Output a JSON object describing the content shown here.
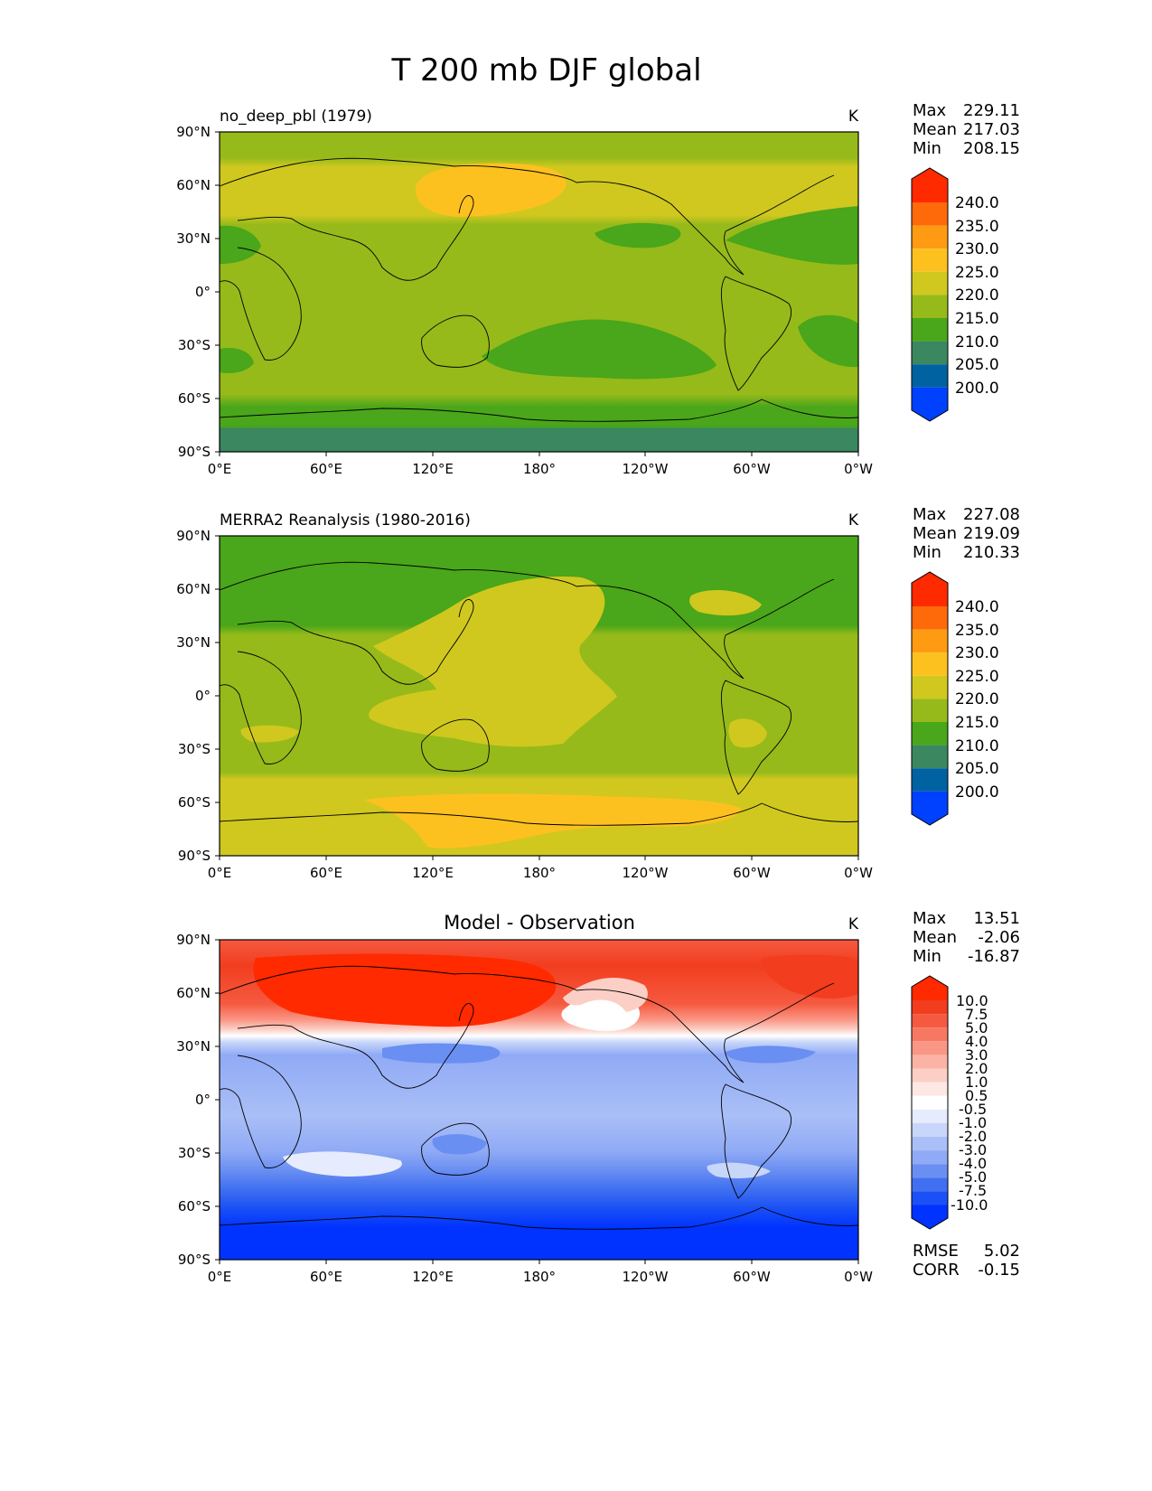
{
  "title": "T 200 mb DJF global",
  "colors": {
    "abs_levels": [
      "#0040ff",
      "#0062a0",
      "#3a8760",
      "#4aa61a",
      "#96ba1a",
      "#d0c81f",
      "#fdc11f",
      "#fe9b12",
      "#fe6a0a",
      "#ff2a00"
    ],
    "diff_levels": [
      "#0033ff",
      "#1a50f5",
      "#4070f0",
      "#6a8ff2",
      "#90aaf5",
      "#aabff7",
      "#c8d6fa",
      "#e6ecfd",
      "#ffffff",
      "#fde8e4",
      "#fccfc6",
      "#fbb3a6",
      "#fa9685",
      "#f77862",
      "#f55a40",
      "#f23d1f",
      "#ff2a00"
    ]
  },
  "axes_labels": {
    "y_ticks": [
      "90°N",
      "60°N",
      "30°N",
      "0°",
      "30°S",
      "60°S",
      "90°S"
    ],
    "x_ticks": [
      "0°E",
      "60°E",
      "120°E",
      "180°",
      "120°W",
      "60°W",
      "0°W"
    ]
  },
  "chart_data": [
    {
      "type": "heatmap",
      "panel": "model",
      "title_left": "no_deep_pbl (1979)",
      "units": "K",
      "stats": [
        {
          "label": "Max",
          "value": "229.11"
        },
        {
          "label": "Mean",
          "value": "217.03"
        },
        {
          "label": "Min",
          "value": "208.15"
        }
      ],
      "colorbar": {
        "levels": [
          200.0,
          205.0,
          210.0,
          215.0,
          220.0,
          225.0,
          230.0,
          235.0,
          240.0
        ],
        "labels": [
          "240.0",
          "235.0",
          "230.0",
          "225.0",
          "220.0",
          "215.0",
          "210.0",
          "205.0",
          "200.0"
        ]
      },
      "field_summary": [
        {
          "region": "polar_north",
          "lat": [
            72,
            90
          ],
          "lon": [
            0,
            360
          ],
          "value": 217
        },
        {
          "region": "high_lat_north",
          "lat": [
            42,
            72
          ],
          "lon": [
            0,
            360
          ],
          "value": 221
        },
        {
          "region": "east_asia_max",
          "lat": [
            45,
            70
          ],
          "lon": [
            110,
            200
          ],
          "value": 226
        },
        {
          "region": "tropics",
          "lat": [
            -60,
            42
          ],
          "lon": [
            0,
            360
          ],
          "value": 217
        },
        {
          "region": "south_pacific_min",
          "lat": [
            -45,
            -10
          ],
          "lon": [
            150,
            280
          ],
          "value": 213
        },
        {
          "region": "antarctic",
          "lat": [
            -90,
            -75
          ],
          "lon": [
            0,
            360
          ],
          "value": 209
        }
      ]
    },
    {
      "type": "heatmap",
      "panel": "observation",
      "title_left": "MERRA2 Reanalysis (1980-2016)",
      "units": "K",
      "stats": [
        {
          "label": "Max",
          "value": "227.08"
        },
        {
          "label": "Mean",
          "value": "219.09"
        },
        {
          "label": "Min",
          "value": "210.33"
        }
      ],
      "colorbar": {
        "levels": [
          200.0,
          205.0,
          210.0,
          215.0,
          220.0,
          225.0,
          230.0,
          235.0,
          240.0
        ],
        "labels": [
          "240.0",
          "235.0",
          "230.0",
          "225.0",
          "220.0",
          "215.0",
          "210.0",
          "205.0",
          "200.0"
        ]
      },
      "field_summary": [
        {
          "region": "north_high_lat",
          "lat": [
            45,
            90
          ],
          "lon": [
            0,
            360
          ],
          "value": 214
        },
        {
          "region": "tropics",
          "lat": [
            -45,
            45
          ],
          "lon": [
            0,
            360
          ],
          "value": 217
        },
        {
          "region": "pacific_warm_pool",
          "lat": [
            -20,
            60
          ],
          "lon": [
            110,
            250
          ],
          "value": 222
        },
        {
          "region": "southern_band",
          "lat": [
            -90,
            -47
          ],
          "lon": [
            0,
            360
          ],
          "value": 222
        },
        {
          "region": "antarctic_max",
          "lat": [
            -90,
            -55
          ],
          "lon": [
            55,
            290
          ],
          "value": 226
        }
      ]
    },
    {
      "type": "heatmap",
      "panel": "difference",
      "title_center": "Model - Observation",
      "units": "K",
      "stats": [
        {
          "label": "Max",
          "value": "13.51"
        },
        {
          "label": "Mean",
          "value": "-2.06"
        },
        {
          "label": "Min",
          "value": "-16.87"
        }
      ],
      "colorbar": {
        "levels": [
          -10.0,
          -7.5,
          -5.0,
          -4.0,
          -3.0,
          -2.0,
          -1.0,
          -0.5,
          0.5,
          1.0,
          2.0,
          3.0,
          4.0,
          5.0,
          7.5,
          10.0
        ],
        "labels": [
          "10.0",
          "7.5",
          "5.0",
          "4.0",
          "3.0",
          "2.0",
          "1.0",
          "0.5",
          "-0.5",
          "-1.0",
          "-2.0",
          "-3.0",
          "-4.0",
          "-5.0",
          "-7.5",
          "-10.0"
        ]
      },
      "metrics": [
        {
          "label": "RMSE",
          "value": "5.02"
        },
        {
          "label": "CORR",
          "value": "-0.15"
        }
      ],
      "field_summary": [
        {
          "region": "north_high_lat",
          "lat": [
            40,
            90
          ],
          "lon": [
            0,
            360
          ],
          "value": 8
        },
        {
          "region": "transition_zone",
          "lat": [
            34,
            42
          ],
          "lon": [
            0,
            360
          ],
          "value": 0
        },
        {
          "region": "tropics",
          "lat": [
            -45,
            34
          ],
          "lon": [
            0,
            360
          ],
          "value": -2.5
        },
        {
          "region": "southern_midlat",
          "lat": [
            -60,
            -45
          ],
          "lon": [
            0,
            360
          ],
          "value": -6
        },
        {
          "region": "antarctic",
          "lat": [
            -90,
            -60
          ],
          "lon": [
            0,
            360
          ],
          "value": -12
        }
      ]
    }
  ]
}
